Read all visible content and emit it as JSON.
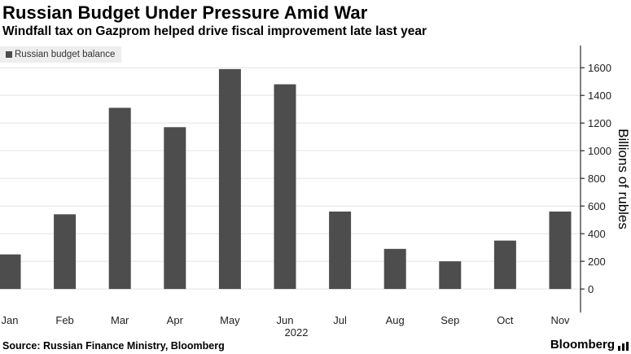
{
  "header": {
    "title": "Russian Budget Under Pressure Amid War",
    "subtitle": "Windfall tax on Gazprom helped drive fiscal improvement late last year"
  },
  "legend": {
    "label": "Russian budget balance",
    "color": "#4d4d4d"
  },
  "footer": {
    "source": "Source: Russian Finance Ministry, Bloomberg",
    "brand": "Bloomberg",
    "brand_icon": "chart-bars-icon"
  },
  "colors": {
    "bar": "#4d4d4d",
    "grid": "#e3e3e3",
    "axis": "#000000"
  },
  "chart_data": {
    "type": "bar",
    "categories": [
      "Jan",
      "Feb",
      "Mar",
      "Apr",
      "May",
      "Jun",
      "Jul",
      "Aug",
      "Sep",
      "Oct",
      "Nov"
    ],
    "year_label": "2022",
    "series": [
      {
        "name": "Russian budget balance",
        "values": [
          250,
          540,
          1310,
          1170,
          1590,
          1480,
          560,
          290,
          200,
          350,
          560
        ]
      }
    ],
    "ylabel": "Billions of rubles",
    "yticks": [
      0,
      200,
      400,
      600,
      800,
      1000,
      1200,
      1400,
      1600
    ],
    "ylim": [
      -170,
      1760
    ],
    "grid": true,
    "y_axis_side": "right",
    "legend_position": "top-left"
  }
}
